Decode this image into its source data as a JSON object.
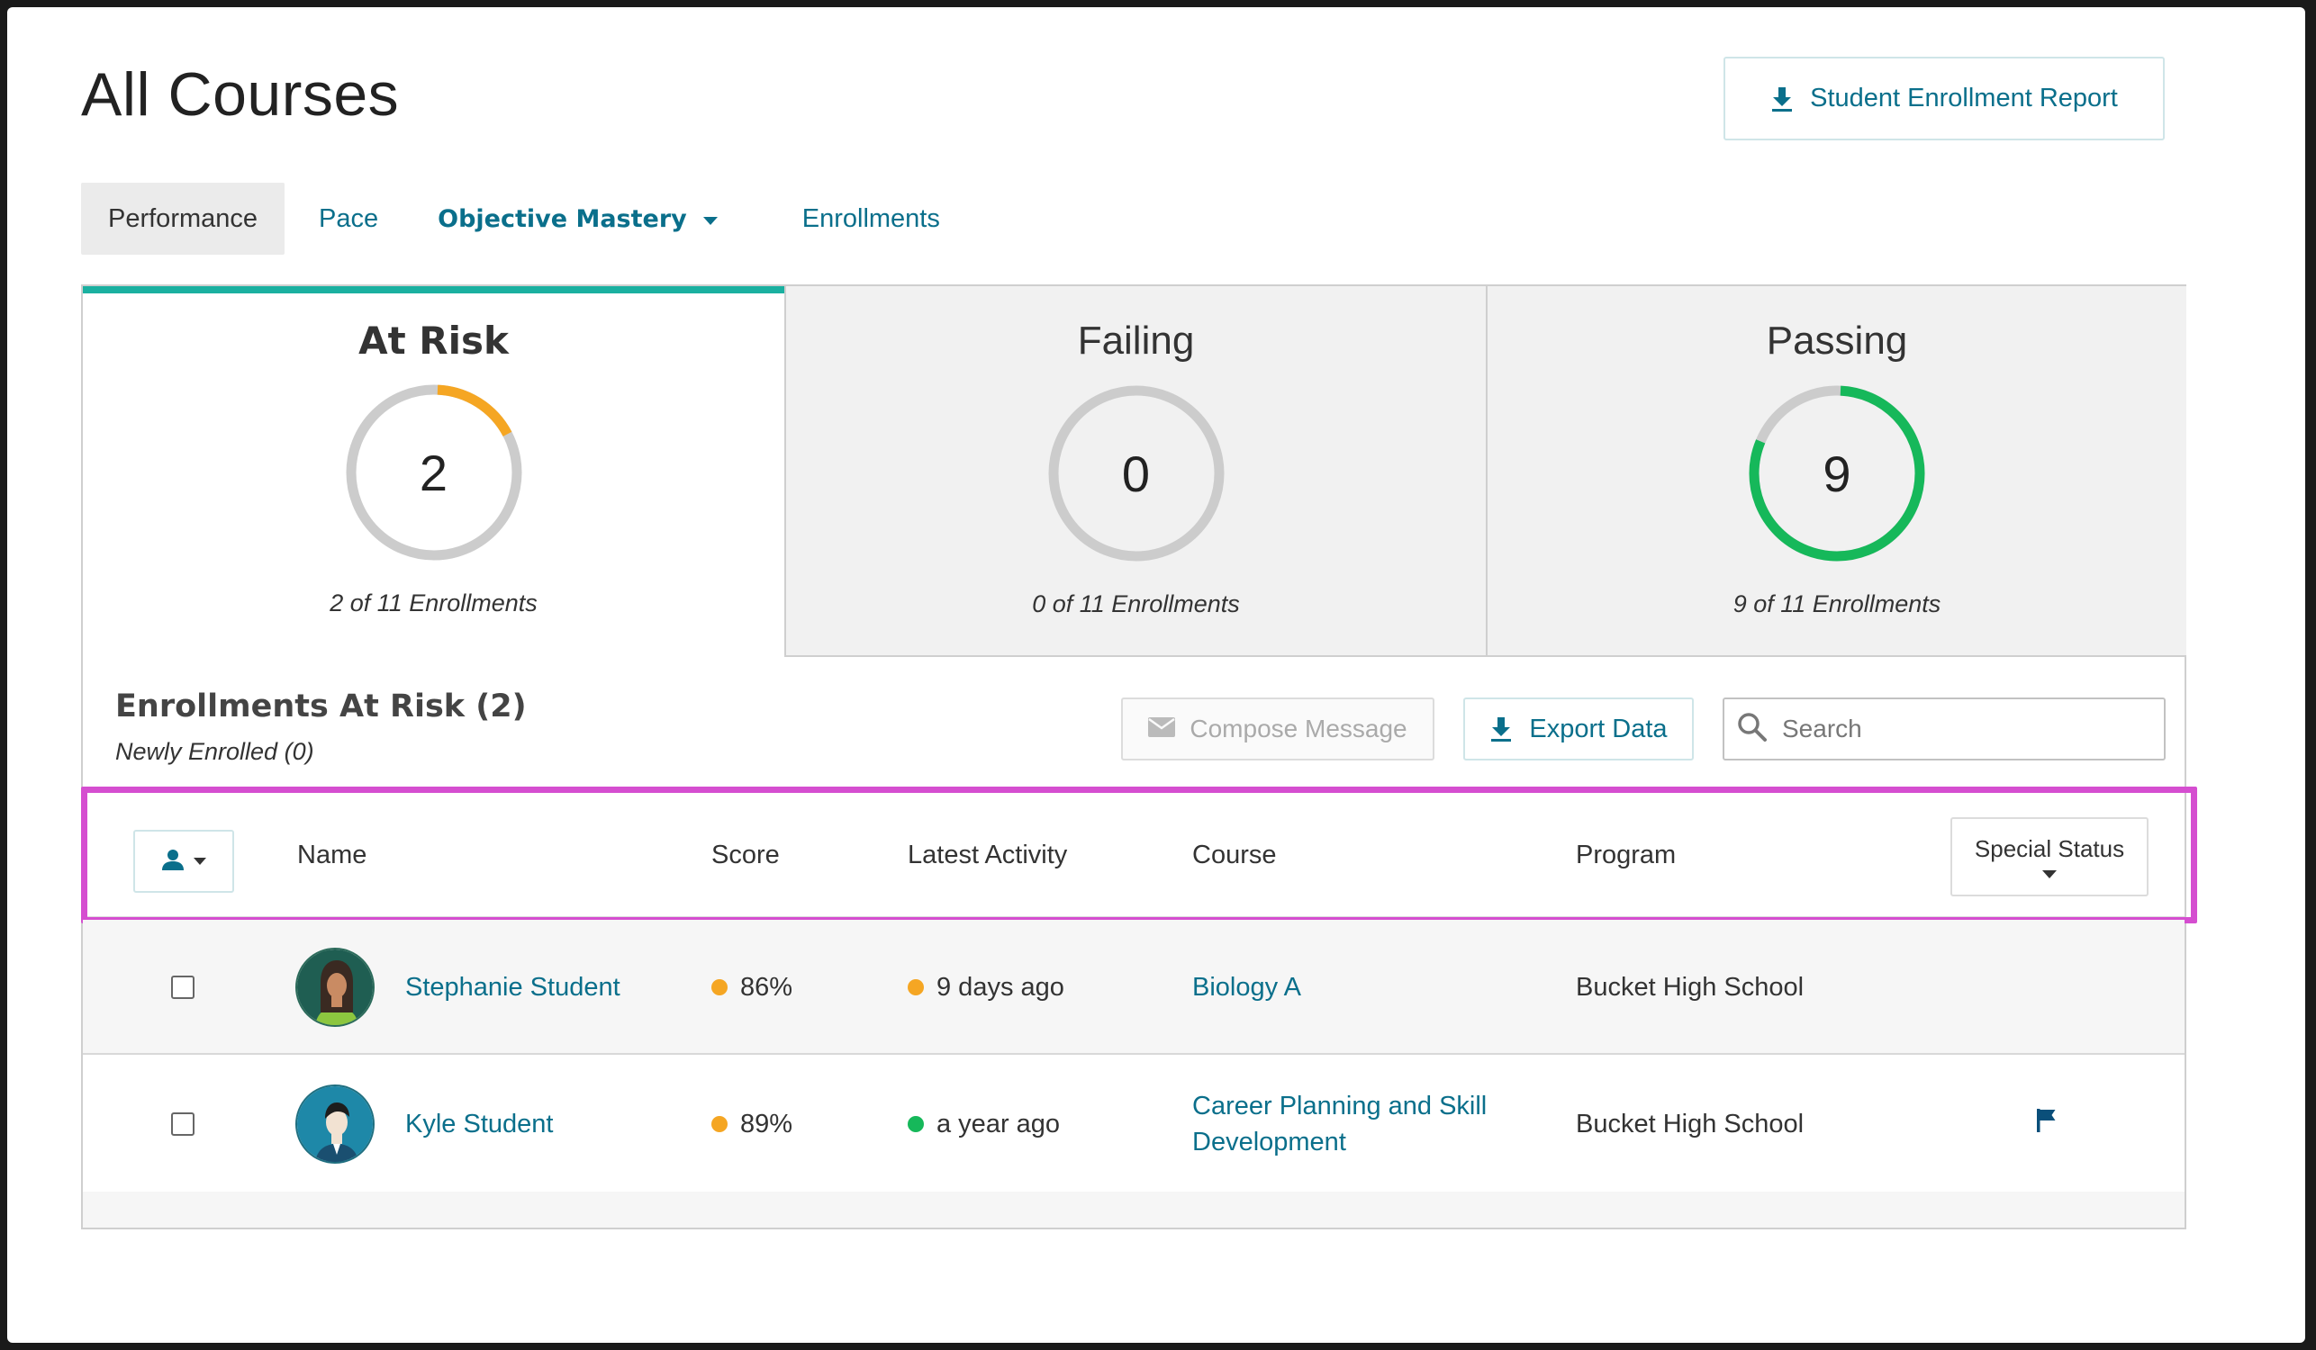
{
  "page": {
    "title": "All Courses"
  },
  "header": {
    "report_button": "Student Enrollment Report"
  },
  "tabs": [
    {
      "label": "Performance"
    },
    {
      "label": "Pace"
    },
    {
      "label": "Objective Mastery"
    },
    {
      "label": "Enrollments"
    }
  ],
  "cards": [
    {
      "title": "At Risk",
      "count": "2",
      "subtitle": "2 of 11 Enrollments",
      "fraction": 0.18,
      "color": "#f5a623"
    },
    {
      "title": "Failing",
      "count": "0",
      "subtitle": "0 of 11 Enrollments",
      "fraction": 0,
      "color": "#e05252"
    },
    {
      "title": "Passing",
      "count": "9",
      "subtitle": "9 of 11 Enrollments",
      "fraction": 0.82,
      "color": "#16b85a"
    }
  ],
  "list": {
    "title": "Enrollments At Risk (2)",
    "subtitle": "Newly Enrolled (0)",
    "compose_label": "Compose Message",
    "export_label": "Export Data",
    "search_placeholder": "Search"
  },
  "columns": {
    "name": "Name",
    "score": "Score",
    "latest_activity": "Latest Activity",
    "course": "Course",
    "program": "Program",
    "special_status": "Special Status"
  },
  "rows": [
    {
      "name": "Stephanie Student",
      "score": "86%",
      "score_color": "#f5a623",
      "activity": "9 days ago",
      "activity_color": "#f5a623",
      "course": "Biology A",
      "program": "Bucket High School",
      "flagged": false,
      "avatar": "female-student-avatar"
    },
    {
      "name": "Kyle Student",
      "score": "89%",
      "score_color": "#f5a623",
      "activity": "a year ago",
      "activity_color": "#16b85a",
      "course": "Career Planning and Skill Development",
      "program": "Bucket High School",
      "flagged": true,
      "avatar": "male-student-avatar"
    }
  ],
  "colors": {
    "accent": "#0a6f8b",
    "active_tab_bar": "#1ab0a0",
    "highlight": "#d54ed0"
  }
}
